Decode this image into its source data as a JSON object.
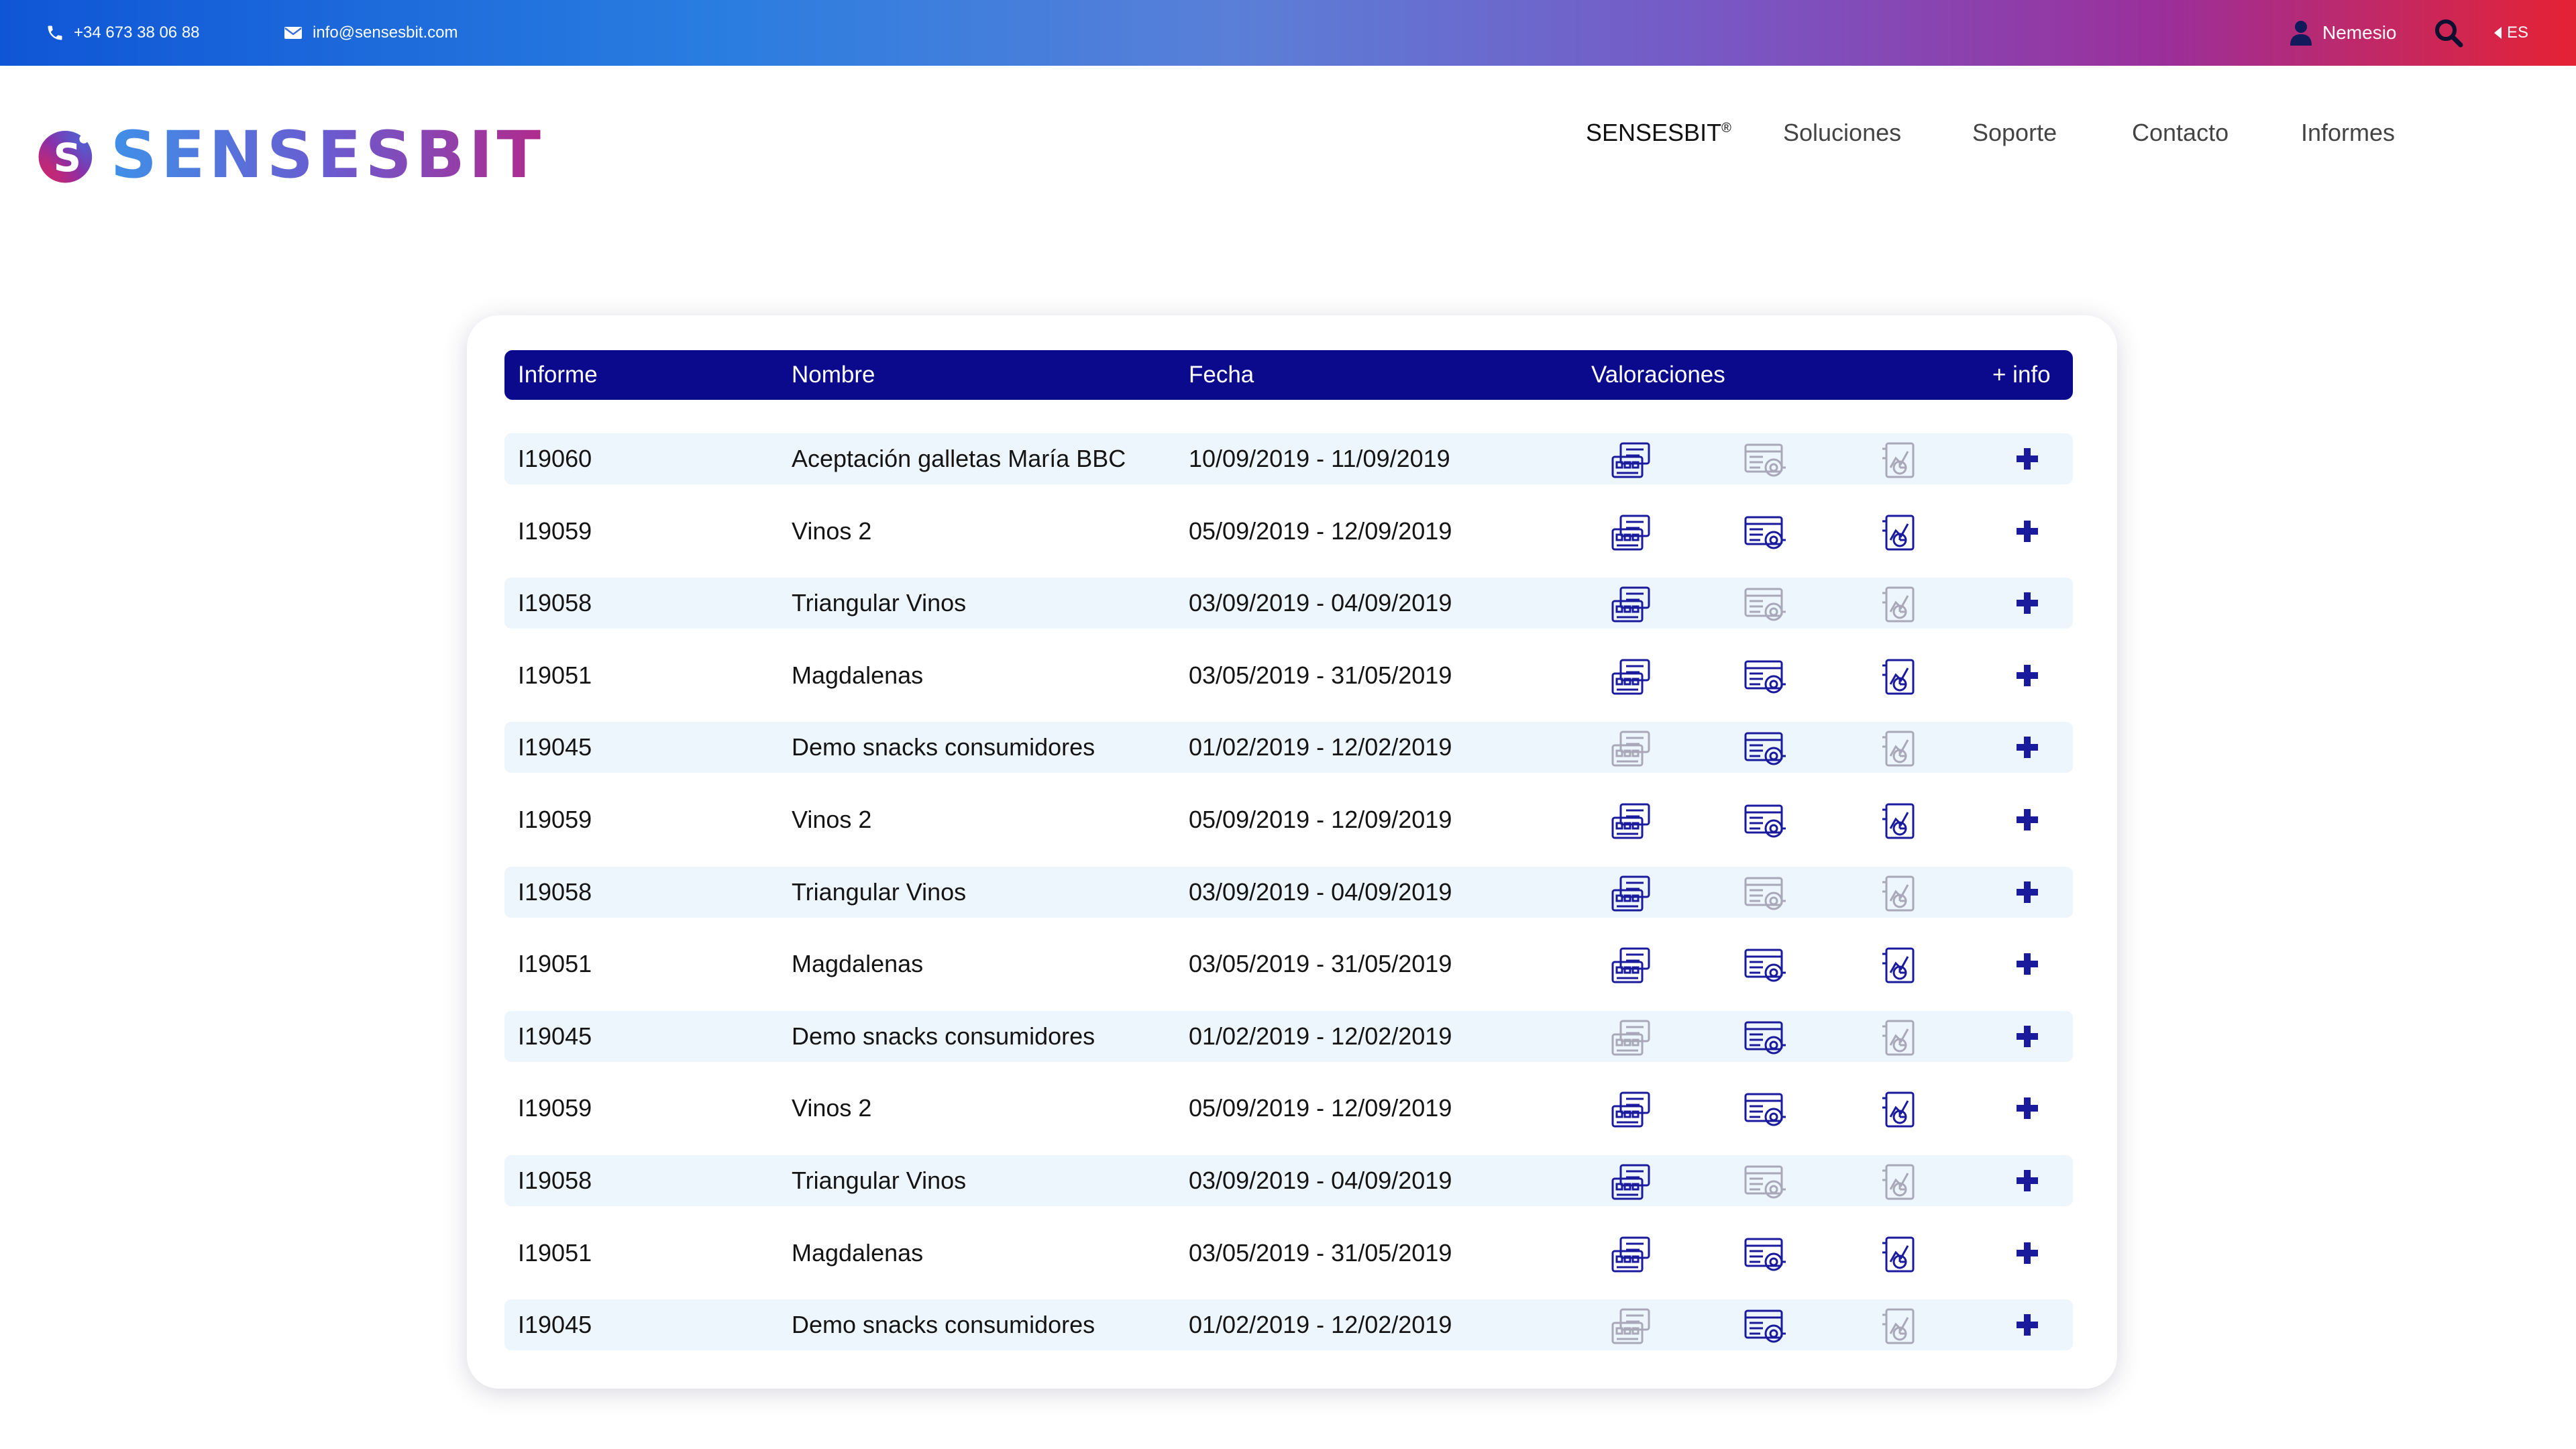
{
  "topbar": {
    "phone": "+34 673 38 06 88",
    "email": "info@sensesbit.com",
    "user": "Nemesio",
    "language": "ES",
    "icons": [
      "phone-icon",
      "mail-icon",
      "user-icon",
      "search-icon",
      "caret-left-icon"
    ]
  },
  "brand": {
    "name": "SENSESBIT",
    "logo_letter": "S"
  },
  "nav": {
    "items": [
      {
        "label": "SENSESBIT",
        "sup": "®"
      },
      {
        "label": "Soluciones"
      },
      {
        "label": "Soporte"
      },
      {
        "label": "Contacto"
      },
      {
        "label": "Informes"
      }
    ]
  },
  "table": {
    "headers": {
      "informe": "Informe",
      "nombre": "Nombre",
      "fecha": "Fecha",
      "valoraciones": "Valoraciones",
      "info": "+ info"
    },
    "rating_icons": [
      "questionnaire-icon",
      "analysis-report-icon",
      "chart-report-icon"
    ],
    "colors": {
      "active": "#1a1a9c",
      "inactive": "#a8a8b8",
      "header_bg": "#0b0a8c",
      "row_shade": "#eef6fd"
    },
    "rows": [
      {
        "id": "I19060",
        "name": "Aceptación galletas María BBC",
        "date": "10/09/2019 - 11/09/2019",
        "ratings": [
          true,
          false,
          false
        ]
      },
      {
        "id": "I19059",
        "name": "Vinos 2",
        "date": "05/09/2019 - 12/09/2019",
        "ratings": [
          true,
          true,
          true
        ]
      },
      {
        "id": "I19058",
        "name": "Triangular Vinos",
        "date": "03/09/2019 - 04/09/2019",
        "ratings": [
          true,
          false,
          false
        ]
      },
      {
        "id": "I19051",
        "name": "Magdalenas",
        "date": "03/05/2019 - 31/05/2019",
        "ratings": [
          true,
          true,
          true
        ]
      },
      {
        "id": "I19045",
        "name": "Demo snacks consumidores",
        "date": "01/02/2019 - 12/02/2019",
        "ratings": [
          false,
          true,
          false
        ]
      },
      {
        "id": "I19059",
        "name": "Vinos 2",
        "date": "05/09/2019 - 12/09/2019",
        "ratings": [
          true,
          true,
          true
        ]
      },
      {
        "id": "I19058",
        "name": "Triangular Vinos",
        "date": "03/09/2019 - 04/09/2019",
        "ratings": [
          true,
          false,
          false
        ]
      },
      {
        "id": "I19051",
        "name": "Magdalenas",
        "date": "03/05/2019 - 31/05/2019",
        "ratings": [
          true,
          true,
          true
        ]
      },
      {
        "id": "I19045",
        "name": "Demo snacks consumidores",
        "date": "01/02/2019 - 12/02/2019",
        "ratings": [
          false,
          true,
          false
        ]
      },
      {
        "id": "I19059",
        "name": "Vinos 2",
        "date": "05/09/2019 - 12/09/2019",
        "ratings": [
          true,
          true,
          true
        ]
      },
      {
        "id": "I19058",
        "name": "Triangular Vinos",
        "date": "03/09/2019 - 04/09/2019",
        "ratings": [
          true,
          false,
          false
        ]
      },
      {
        "id": "I19051",
        "name": "Magdalenas",
        "date": "03/05/2019 - 31/05/2019",
        "ratings": [
          true,
          true,
          true
        ]
      },
      {
        "id": "I19045",
        "name": "Demo snacks consumidores",
        "date": "01/02/2019 - 12/02/2019",
        "ratings": [
          false,
          true,
          false
        ]
      }
    ]
  }
}
